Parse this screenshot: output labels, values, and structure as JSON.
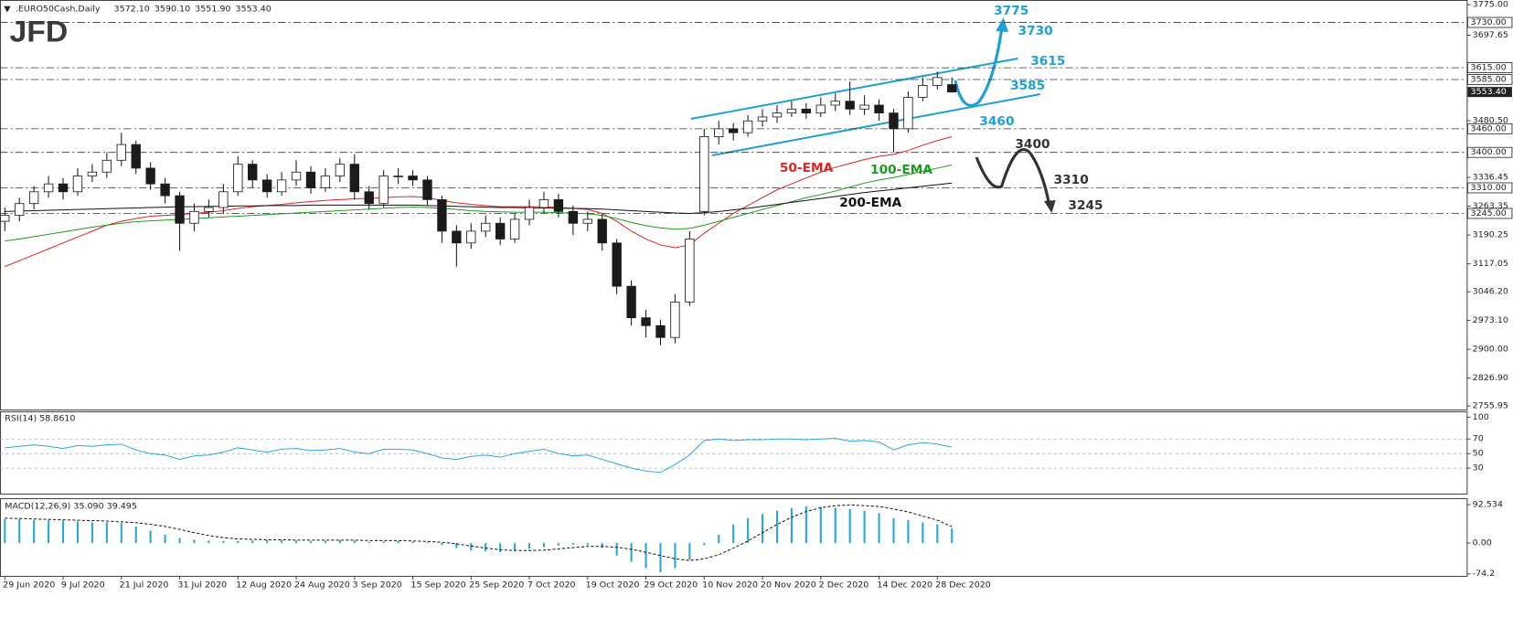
{
  "chart_data": {
    "type": "candlestick",
    "header": {
      "symbol": ".EURO50Cash,Daily",
      "ohlc": [
        "3572.10",
        "3590.10",
        "3551.90",
        "3553.40"
      ],
      "logo": "JFD"
    },
    "categories": [
      "29 Jun 2020",
      null,
      null,
      null,
      "9 Jul 2020",
      null,
      null,
      null,
      "21 Jul 2020",
      null,
      null,
      null,
      "31 Jul 2020",
      null,
      null,
      null,
      "12 Aug 2020",
      null,
      null,
      null,
      "24 Aug 2020",
      null,
      null,
      null,
      "3 Sep 2020",
      null,
      null,
      null,
      "15 Sep 2020",
      null,
      null,
      null,
      "25 Sep 2020",
      null,
      null,
      null,
      "7 Oct 2020",
      null,
      null,
      null,
      "19 Oct 2020",
      null,
      null,
      null,
      "29 Oct 2020",
      null,
      null,
      null,
      "10 Nov 2020",
      null,
      null,
      null,
      "20 Nov 2020",
      null,
      null,
      null,
      "2 Dec 2020",
      null,
      null,
      null,
      "14 Dec 2020",
      null,
      null,
      null,
      "28 Dec 2020",
      null
    ],
    "open": [
      3225,
      3240,
      3270,
      3300,
      3320,
      3300,
      3340,
      3350,
      3380,
      3420,
      3360,
      3320,
      3290,
      3220,
      3250,
      3260,
      3300,
      3370,
      3330,
      3300,
      3330,
      3350,
      3310,
      3340,
      3370,
      3300,
      3270,
      3340,
      3340,
      3330,
      3280,
      3200,
      3170,
      3200,
      3220,
      3180,
      3230,
      3260,
      3280,
      3250,
      3220,
      3230,
      3170,
      3060,
      2980,
      2960,
      2930,
      3020,
      3250,
      3440,
      3460,
      3450,
      3480,
      3490,
      3500,
      3510,
      3500,
      3520,
      3530,
      3510,
      3520,
      3500,
      3460,
      3540,
      3570,
      3572.1
    ],
    "high": [
      3260,
      3285,
      3315,
      3340,
      3335,
      3360,
      3370,
      3400,
      3450,
      3430,
      3375,
      3335,
      3300,
      3270,
      3280,
      3320,
      3390,
      3380,
      3345,
      3350,
      3380,
      3365,
      3360,
      3385,
      3395,
      3315,
      3355,
      3360,
      3355,
      3340,
      3290,
      3215,
      3220,
      3240,
      3235,
      3245,
      3280,
      3300,
      3295,
      3265,
      3250,
      3245,
      3180,
      3075,
      3000,
      2975,
      3040,
      3200,
      3460,
      3480,
      3475,
      3495,
      3510,
      3520,
      3530,
      3525,
      3540,
      3550,
      3580,
      3545,
      3535,
      3510,
      3555,
      3590,
      3605,
      3590.1
    ],
    "low": [
      3200,
      3225,
      3255,
      3285,
      3280,
      3290,
      3325,
      3335,
      3365,
      3345,
      3305,
      3270,
      3150,
      3200,
      3235,
      3245,
      3290,
      3310,
      3285,
      3290,
      3315,
      3295,
      3300,
      3325,
      3280,
      3255,
      3260,
      3320,
      3315,
      3265,
      3170,
      3110,
      3155,
      3185,
      3165,
      3170,
      3215,
      3245,
      3235,
      3190,
      3200,
      3150,
      3040,
      2960,
      2930,
      2910,
      2915,
      3010,
      3240,
      3420,
      3430,
      3440,
      3465,
      3475,
      3490,
      3485,
      3490,
      3505,
      3495,
      3495,
      3480,
      3400,
      3450,
      3530,
      3560,
      3551.9
    ],
    "close": [
      3240,
      3270,
      3300,
      3320,
      3300,
      3340,
      3350,
      3380,
      3420,
      3360,
      3320,
      3290,
      3220,
      3250,
      3260,
      3300,
      3370,
      3330,
      3300,
      3330,
      3350,
      3310,
      3340,
      3370,
      3300,
      3270,
      3340,
      3340,
      3330,
      3280,
      3200,
      3170,
      3200,
      3220,
      3180,
      3230,
      3260,
      3280,
      3250,
      3220,
      3230,
      3170,
      3060,
      2980,
      2960,
      2930,
      3020,
      3180,
      3440,
      3460,
      3450,
      3480,
      3490,
      3500,
      3510,
      3500,
      3520,
      3530,
      3510,
      3520,
      3500,
      3460,
      3540,
      3570,
      3590,
      3553.4
    ],
    "bull_color": "#ffffff",
    "bear_color": "#1a1a1a",
    "series": [
      {
        "name": "50-EMA",
        "color": "#e02424",
        "values": [
          3110,
          3125,
          3140,
          3155,
          3170,
          3185,
          3200,
          3215,
          3225,
          3232,
          3238,
          3240,
          3242,
          3245,
          3248,
          3252,
          3258,
          3262,
          3265,
          3268,
          3272,
          3275,
          3278,
          3280,
          3282,
          3283,
          3285,
          3287,
          3288,
          3285,
          3278,
          3272,
          3268,
          3265,
          3262,
          3262,
          3262,
          3262,
          3260,
          3258,
          3255,
          3245,
          3225,
          3200,
          3180,
          3165,
          3158,
          3165,
          3195,
          3220,
          3245,
          3265,
          3285,
          3305,
          3320,
          3335,
          3350,
          3362,
          3372,
          3382,
          3390,
          3395,
          3405,
          3418,
          3430,
          3440
        ]
      },
      {
        "name": "100-EMA",
        "color": "#1e9a1e",
        "values": [
          3175,
          3180,
          3186,
          3192,
          3198,
          3204,
          3210,
          3215,
          3220,
          3224,
          3226,
          3228,
          3230,
          3232,
          3234,
          3236,
          3238,
          3240,
          3242,
          3244,
          3246,
          3248,
          3250,
          3252,
          3254,
          3256,
          3258,
          3260,
          3261,
          3260,
          3258,
          3255,
          3252,
          3250,
          3249,
          3248,
          3248,
          3248,
          3247,
          3246,
          3244,
          3240,
          3232,
          3222,
          3214,
          3208,
          3205,
          3207,
          3215,
          3225,
          3235,
          3245,
          3255,
          3265,
          3275,
          3285,
          3293,
          3302,
          3312,
          3322,
          3330,
          3336,
          3344,
          3352,
          3360,
          3368
        ]
      },
      {
        "name": "200-EMA",
        "color": "#111111",
        "values": [
          3250,
          3251,
          3252,
          3253,
          3254,
          3255,
          3256,
          3257,
          3258,
          3259,
          3260,
          3261,
          3262,
          3262,
          3263,
          3263,
          3264,
          3264,
          3265,
          3265,
          3265,
          3266,
          3266,
          3266,
          3266,
          3266,
          3266,
          3266,
          3266,
          3265,
          3264,
          3263,
          3262,
          3261,
          3260,
          3260,
          3259,
          3259,
          3258,
          3258,
          3257,
          3256,
          3254,
          3252,
          3250,
          3248,
          3246,
          3245,
          3247,
          3250,
          3254,
          3258,
          3263,
          3268,
          3273,
          3278,
          3283,
          3288,
          3293,
          3298,
          3302,
          3306,
          3310,
          3314,
          3318,
          3322
        ]
      }
    ],
    "ylim": [
      2747,
      3787
    ],
    "yticks": [
      {
        "value": 3775,
        "label": "3775.00"
      },
      3697.65,
      {
        "value": 3480.5,
        "label": "3480.50"
      },
      3336.45,
      3263.35,
      3190.25,
      3117.05,
      {
        "value": 3046.2,
        "label": "3046.20"
      },
      {
        "value": 2973.1,
        "label": "2973.10"
      },
      {
        "value": 2900,
        "label": "2900.00"
      },
      {
        "value": 2826.9,
        "label": "2826.90"
      },
      2755.95
    ],
    "levels": [
      {
        "value": 3730,
        "label": "3730.00"
      },
      {
        "value": 3615,
        "label": "3615.00"
      },
      {
        "value": 3585,
        "label": "3585.00"
      },
      {
        "value": 3460,
        "label": "3460.00"
      },
      {
        "value": 3400,
        "label": "3400.00"
      },
      {
        "value": 3310,
        "label": "3310.00"
      },
      {
        "value": 3245,
        "label": "3245.00"
      }
    ],
    "last_price": {
      "value": 3553.4,
      "label": "3553.40"
    },
    "annotations": [
      {
        "text": "3775",
        "color": "#1e9fd6"
      },
      {
        "text": "3730",
        "color": "#1e9fd6"
      },
      {
        "text": "3615",
        "color": "#1e9fd6"
      },
      {
        "text": "3585",
        "color": "#1e9fd6"
      },
      {
        "text": "3460",
        "color": "#1e9fd6"
      },
      {
        "text": "3400",
        "color": "#333333"
      },
      {
        "text": "3310",
        "color": "#333333"
      },
      {
        "text": "3245",
        "color": "#333333"
      },
      {
        "text": "50-EMA",
        "color": "#e02424"
      },
      {
        "text": "100-EMA",
        "color": "#1e9a1e"
      },
      {
        "text": "200-EMA",
        "color": "#111111"
      }
    ],
    "rsi": {
      "title": "RSI(14) 58.8610",
      "color": "#29a8d8",
      "ylim": [
        -5,
        108
      ],
      "yticks": [
        100,
        70,
        50,
        30
      ],
      "levels": [
        70,
        50,
        30
      ],
      "values": [
        58,
        60,
        62,
        60,
        57,
        61,
        60,
        62,
        63,
        55,
        50,
        48,
        42,
        47,
        48,
        52,
        58,
        55,
        52,
        56,
        57,
        54,
        55,
        57,
        52,
        50,
        56,
        56,
        55,
        50,
        44,
        42,
        46,
        48,
        45,
        50,
        53,
        56,
        50,
        47,
        48,
        42,
        36,
        30,
        26,
        24,
        35,
        48,
        68,
        70,
        68,
        69,
        69,
        70,
        70,
        69,
        70,
        71,
        67,
        68,
        66,
        55,
        62,
        65,
        63,
        58.861
      ]
    },
    "macd": {
      "title": "MACD(12,26,9) 35.090 39.495",
      "color": "#29a8d8",
      "signal_color": "#111111",
      "ylim": [
        -79,
        108
      ],
      "yticks": [
        92.534,
        {
          "value": 0,
          "label": "0.00"
        },
        -74.2
      ],
      "values": [
        58,
        57,
        56,
        55,
        54,
        52,
        50,
        50,
        48,
        40,
        30,
        20,
        12,
        8,
        6,
        5,
        5,
        6,
        7,
        7,
        6,
        5,
        6,
        7,
        6,
        3,
        4,
        5,
        4,
        2,
        -5,
        -12,
        -18,
        -20,
        -22,
        -18,
        -14,
        -10,
        -6,
        -4,
        -5,
        -12,
        -30,
        -45,
        -60,
        -70,
        -60,
        -40,
        -5,
        20,
        45,
        60,
        70,
        78,
        84,
        88,
        87,
        85,
        82,
        78,
        72,
        60,
        55,
        50,
        45,
        35.09
      ],
      "signal": [
        60,
        59,
        58,
        57,
        56,
        55,
        54,
        53,
        51,
        49,
        45,
        40,
        33,
        25,
        18,
        13,
        10,
        9,
        8,
        8,
        7,
        7,
        7,
        7,
        7,
        6,
        6,
        6,
        5,
        4,
        2,
        -2,
        -7,
        -12,
        -16,
        -18,
        -18,
        -17,
        -14,
        -11,
        -8,
        -8,
        -10,
        -15,
        -22,
        -30,
        -38,
        -42,
        -38,
        -28,
        -12,
        5,
        25,
        45,
        62,
        76,
        85,
        90,
        92,
        90,
        88,
        82,
        75,
        65,
        55,
        39.495
      ]
    }
  }
}
